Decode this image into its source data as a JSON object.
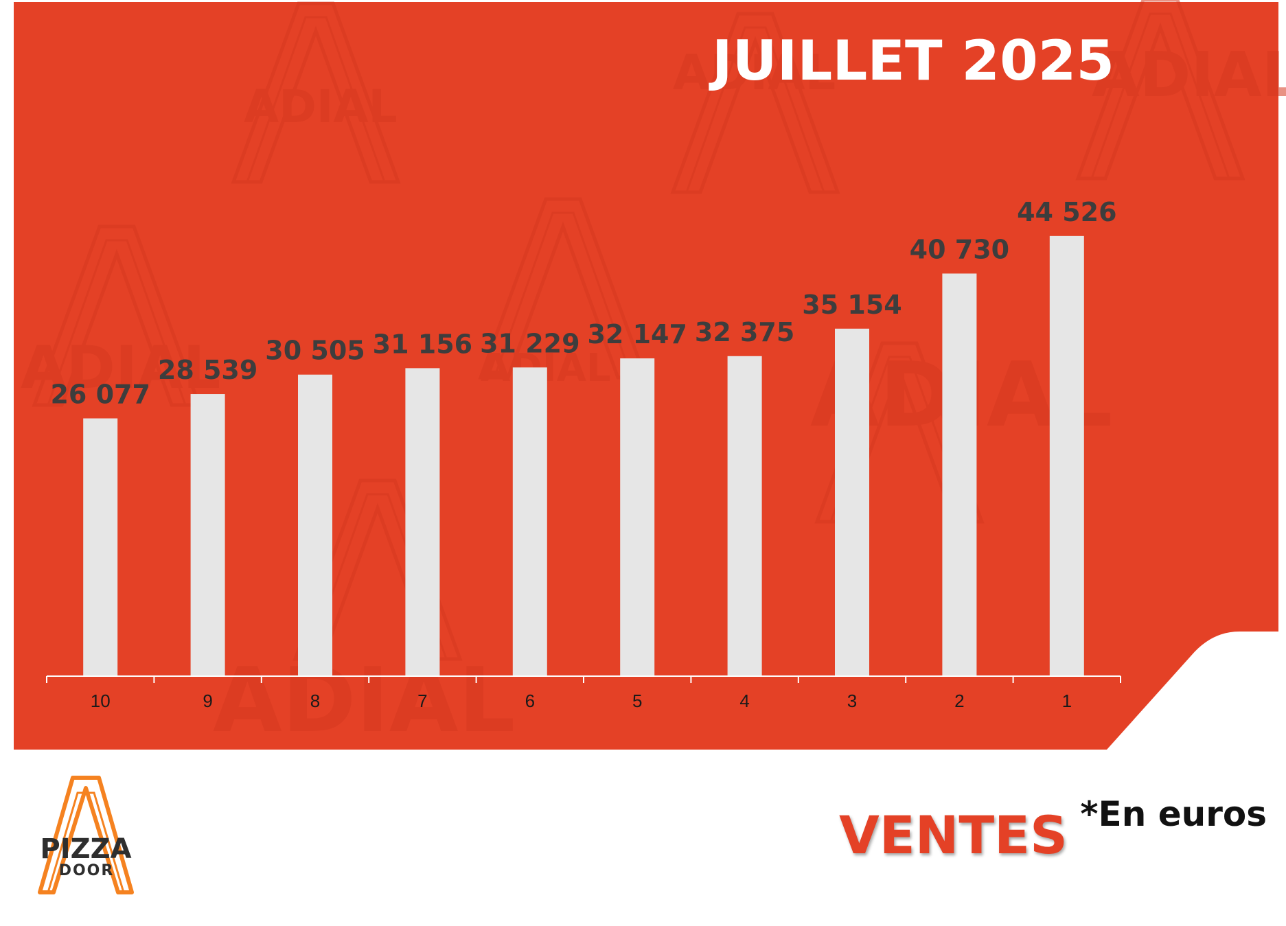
{
  "colors": {
    "panel": "#e44126",
    "bar": "#e6e6e6",
    "value_label": "#3d3d3d",
    "title": "#ffffff",
    "axis": "#ffffff",
    "tick_label": "#1a1a1a",
    "ventes": "#e44126",
    "note": "#111111",
    "logo_orange": "#f58220",
    "logo_dark": "#2e2e2e",
    "watermark": "#d63a20"
  },
  "header": {
    "title": "JUILLET 2025"
  },
  "watermark": {
    "text": "ADIAL"
  },
  "chart_data": {
    "type": "bar",
    "categories": [
      "10",
      "9",
      "8",
      "7",
      "6",
      "5",
      "4",
      "3",
      "2",
      "1"
    ],
    "values": [
      26077,
      28539,
      30505,
      31156,
      31229,
      32147,
      32375,
      35154,
      40730,
      44526
    ],
    "value_labels": [
      "26 077",
      "28 539",
      "30 505",
      "31 156",
      "31 229",
      "32 147",
      "32 375",
      "35 154",
      "40 730",
      "44 526"
    ],
    "title": "JUILLET 2025",
    "xlabel": "",
    "ylabel": "",
    "ylim": [
      0,
      50000
    ],
    "grid": false,
    "legend": "none"
  },
  "footer": {
    "ventes": "VENTES",
    "note": "*En euros"
  },
  "logo": {
    "line1": "PIZZA",
    "line2": "DOOR"
  }
}
